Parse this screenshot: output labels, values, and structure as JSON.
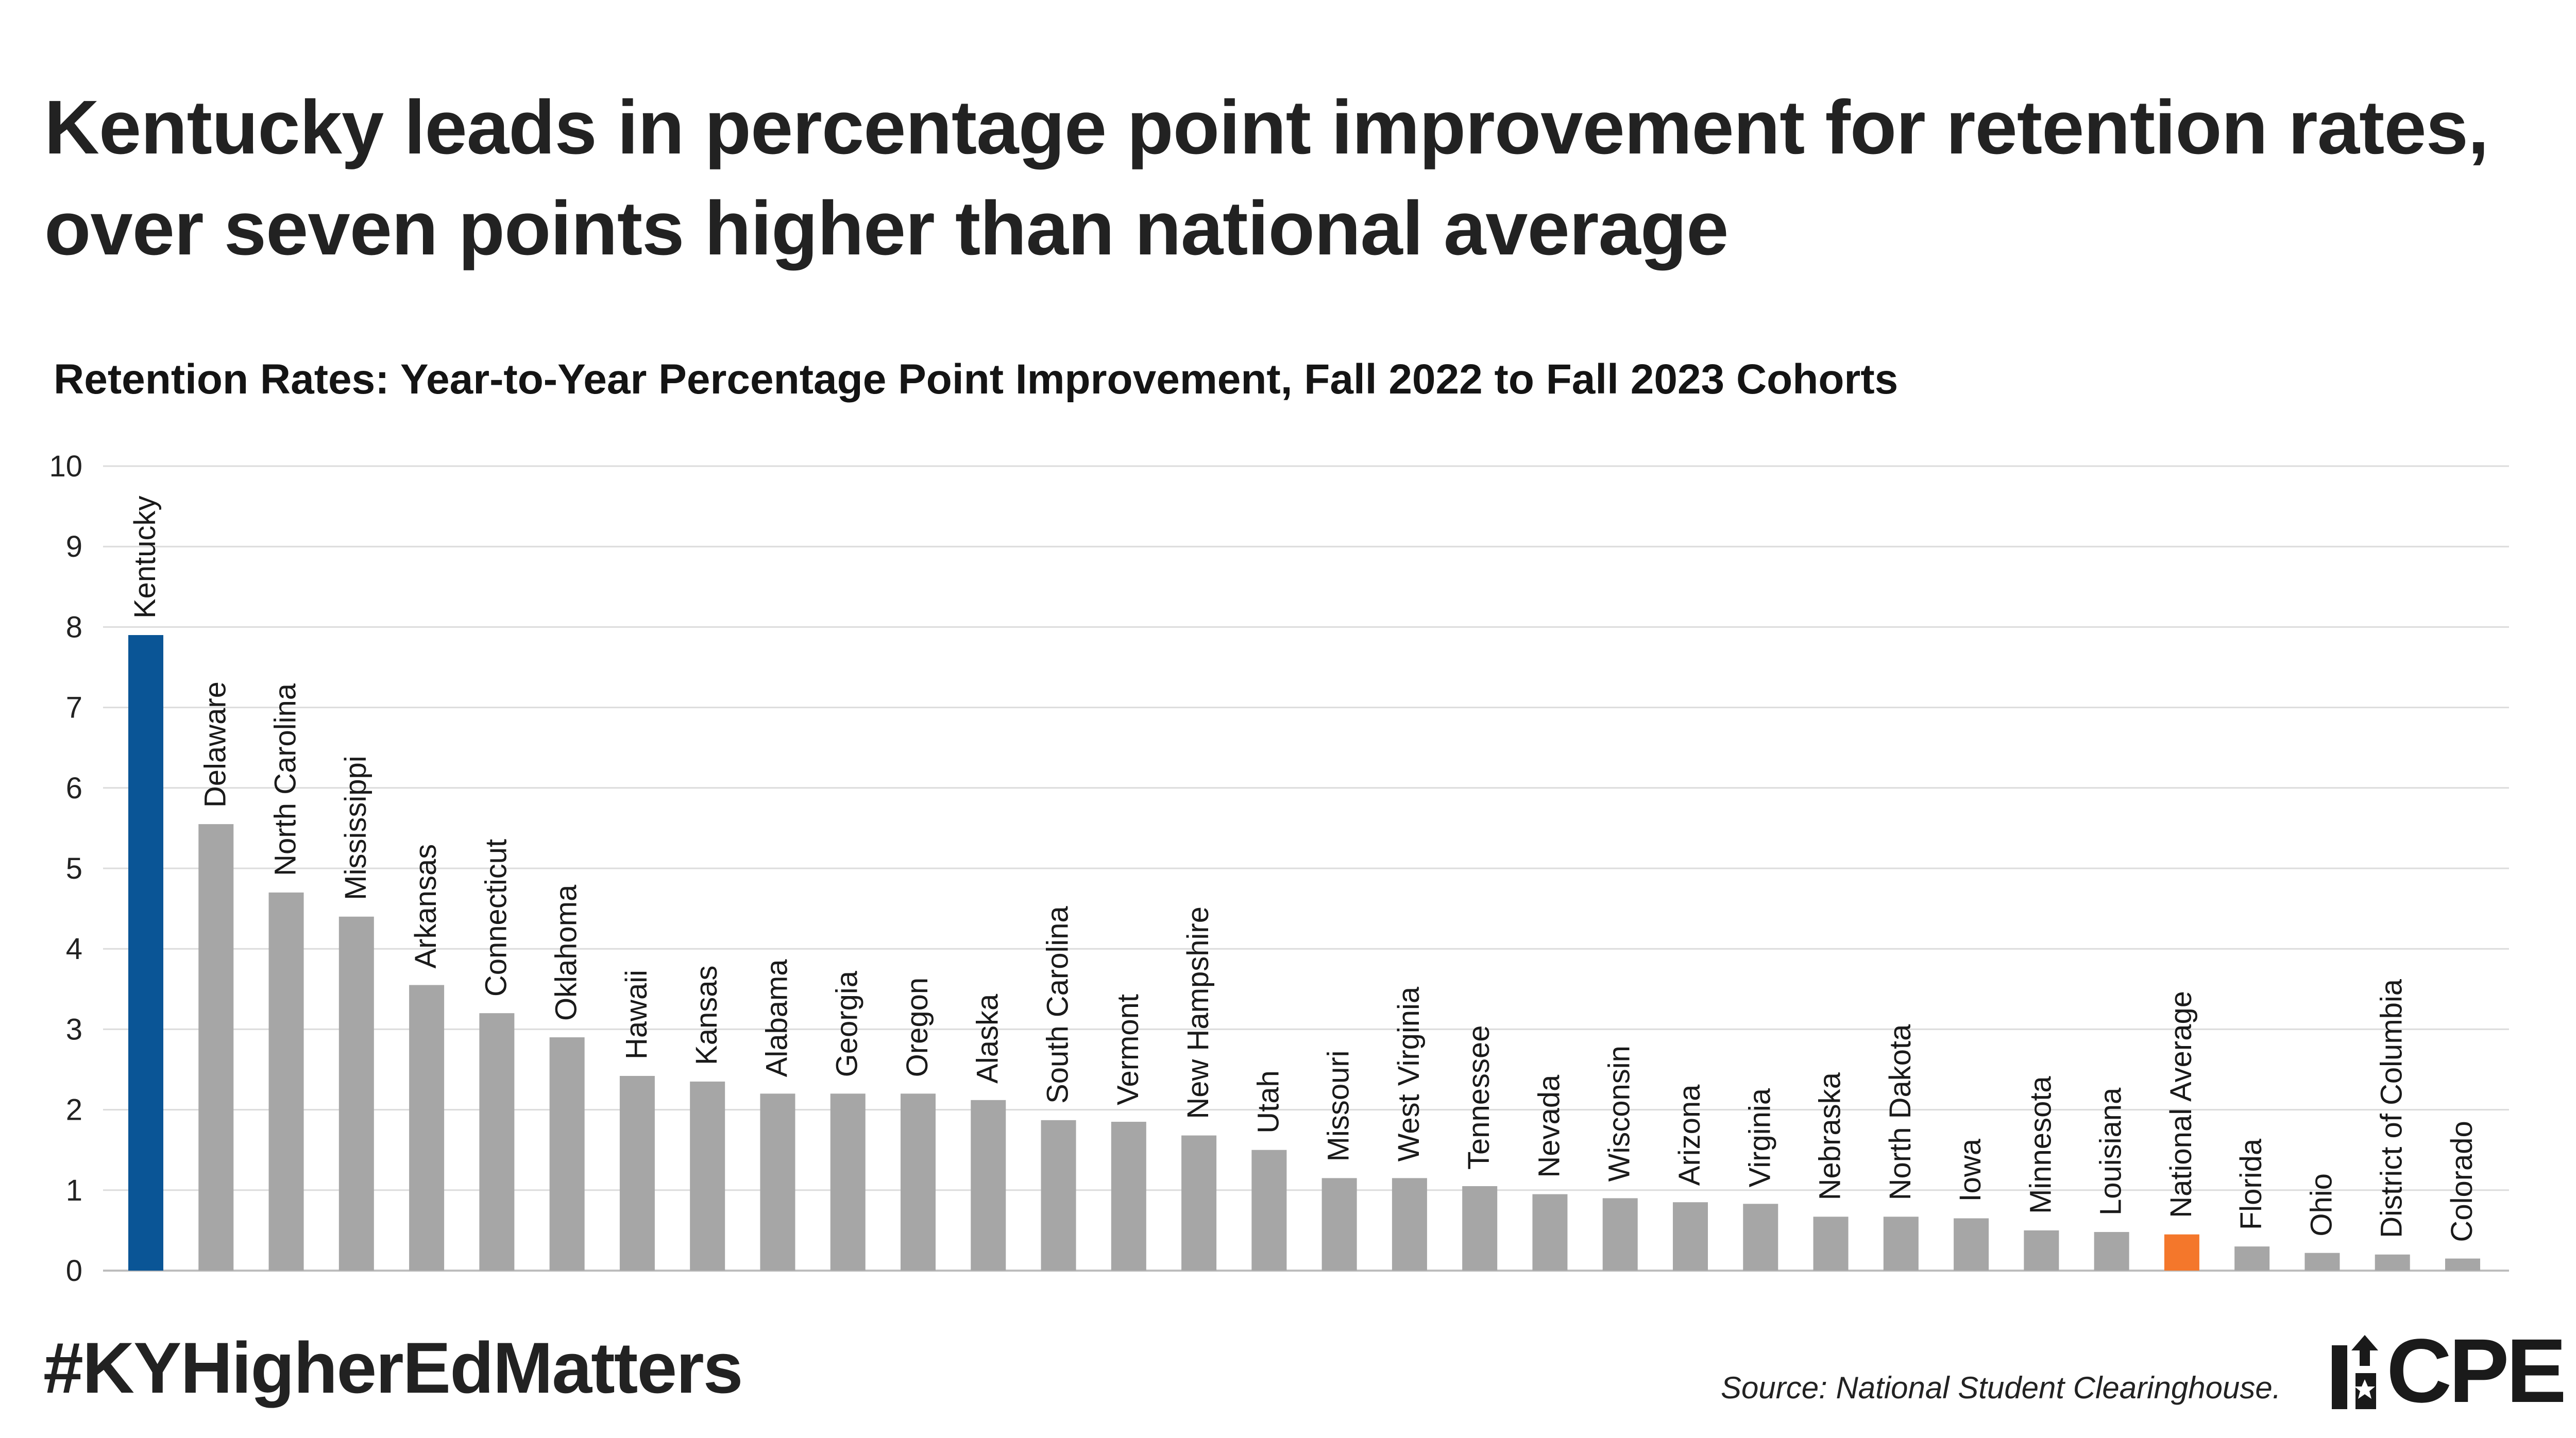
{
  "headline": "Kentucky leads in percentage point improvement for retention rates, over seven points higher than national average",
  "footer": {
    "hashtag": "#KYHigherEdMatters",
    "source": "Source: National Student Clearinghouse.",
    "logo_text": "CPE"
  },
  "chart_data": {
    "type": "bar",
    "title": "Retention Rates: Year-to-Year Percentage Point Improvement, Fall 2022 to Fall 2023 Cohorts",
    "xlabel": "",
    "ylabel": "",
    "ylim": [
      0,
      10
    ],
    "yticks": [
      0,
      1,
      2,
      3,
      4,
      5,
      6,
      7,
      8,
      9,
      10
    ],
    "grid": true,
    "legend": "none",
    "categories": [
      "Kentucky",
      "Delaware",
      "North Carolina",
      "Mississippi",
      "Arkansas",
      "Connecticut",
      "Oklahoma",
      "Hawaii",
      "Kansas",
      "Alabama",
      "Georgia",
      "Oregon",
      "Alaska",
      "South Carolina",
      "Vermont",
      "New Hampshire",
      "Utah",
      "Missouri",
      "West Virginia",
      "Tennessee",
      "Nevada",
      "Wisconsin",
      "Arizona",
      "Virginia",
      "Nebraska",
      "North Dakota",
      "Iowa",
      "Minnesota",
      "Louisiana",
      "National Average",
      "Florida",
      "Ohio",
      "District of Columbia",
      "Colorado"
    ],
    "values": [
      7.9,
      5.55,
      4.7,
      4.4,
      3.55,
      3.2,
      2.9,
      2.42,
      2.35,
      2.2,
      2.2,
      2.2,
      2.12,
      1.87,
      1.85,
      1.68,
      1.5,
      1.15,
      1.15,
      1.05,
      0.95,
      0.9,
      0.85,
      0.83,
      0.67,
      0.67,
      0.65,
      0.5,
      0.48,
      0.45,
      0.3,
      0.22,
      0.2,
      0.15
    ],
    "colors": {
      "default": "#a6a6a6",
      "highlight_kentucky": "#0a5596",
      "highlight_national_average": "#f4772b"
    },
    "highlights": {
      "Kentucky": "highlight_kentucky",
      "National Average": "highlight_national_average"
    }
  }
}
